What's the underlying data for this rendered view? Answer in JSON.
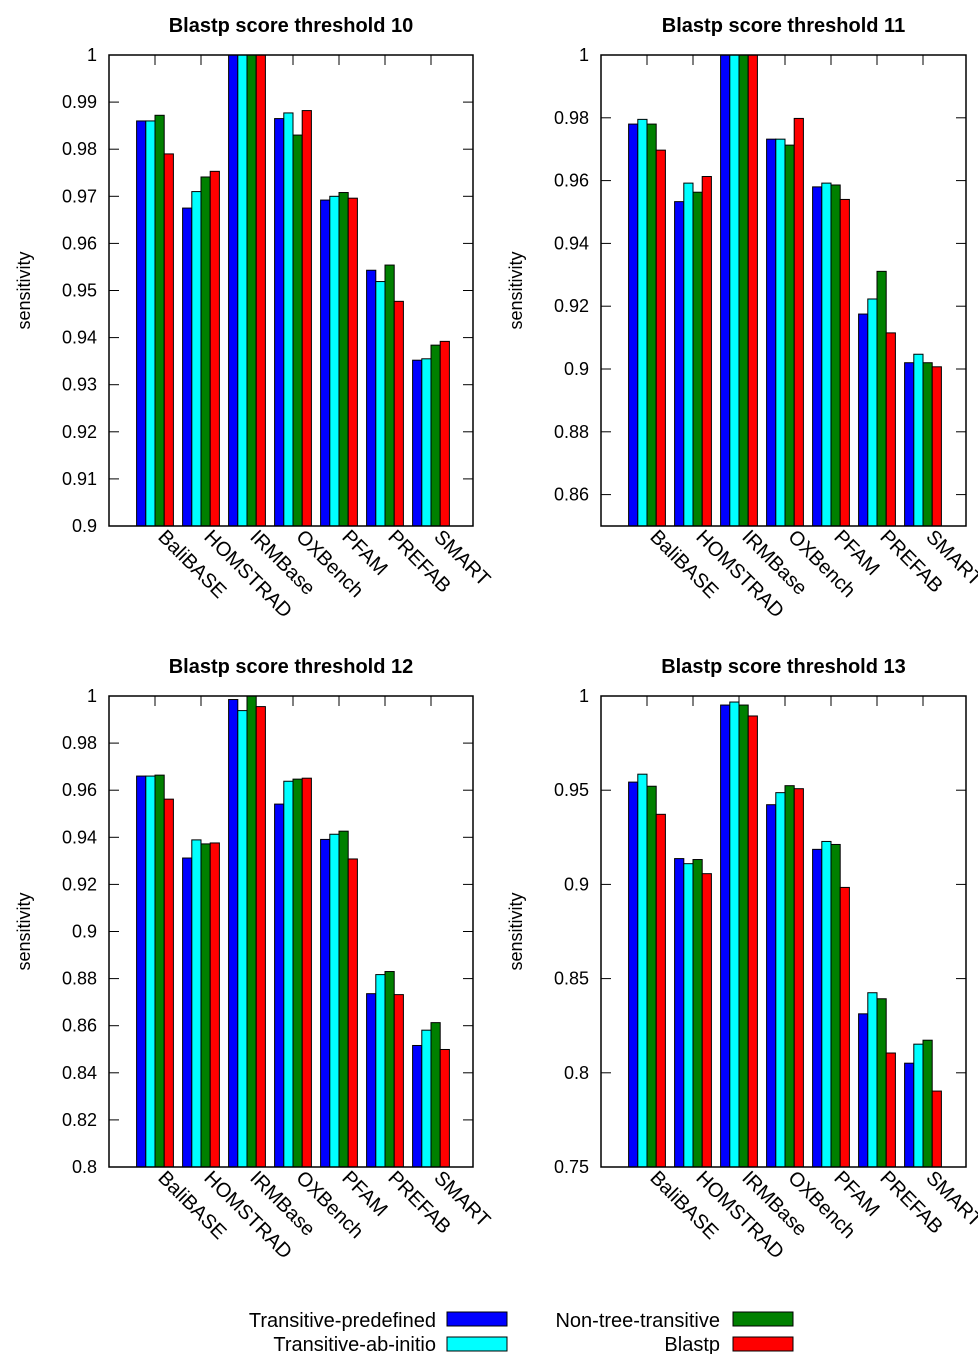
{
  "legend": [
    {
      "label": "Transitive-predefined",
      "color": "#0000ff"
    },
    {
      "label": "Transitive-ab-initio",
      "color": "#00ffff"
    },
    {
      "label": "Non-tree-transitive",
      "color": "#008000"
    },
    {
      "label": "Blastp",
      "color": "#ff0000"
    }
  ],
  "chart_data": [
    {
      "type": "bar",
      "title": "Blastp score threshold 10",
      "ylabel": "sensitivity",
      "xlabel": "",
      "ylim": [
        0.9,
        1.0
      ],
      "yticks": [
        0.9,
        0.91,
        0.92,
        0.93,
        0.94,
        0.95,
        0.96,
        0.97,
        0.98,
        0.99,
        1.0
      ],
      "ytick_labels": [
        "0.9",
        "0.91",
        "0.92",
        "0.93",
        "0.94",
        "0.95",
        "0.96",
        "0.97",
        "0.98",
        "0.99",
        "1"
      ],
      "categories": [
        "BaliBASE",
        "HOMSTRAD",
        "IRMBase",
        "OXBench",
        "PFAM",
        "PREFAB",
        "SMART"
      ],
      "series": [
        {
          "name": "Transitive-predefined",
          "values": [
            0.986,
            0.9675,
            1.0,
            0.9865,
            0.9692,
            0.9543,
            0.9352
          ]
        },
        {
          "name": "Transitive-ab-initio",
          "values": [
            0.986,
            0.971,
            1.0,
            0.9877,
            0.97,
            0.9519,
            0.9355
          ]
        },
        {
          "name": "Non-tree-transitive",
          "values": [
            0.9872,
            0.9741,
            1.0,
            0.983,
            0.9708,
            0.9554,
            0.9384
          ]
        },
        {
          "name": "Blastp",
          "values": [
            0.979,
            0.9753,
            1.0,
            0.9882,
            0.9696,
            0.9477,
            0.9392
          ]
        }
      ]
    },
    {
      "type": "bar",
      "title": "Blastp score threshold 11",
      "ylabel": "sensitivity",
      "xlabel": "",
      "ylim": [
        0.85,
        1.0
      ],
      "yticks": [
        0.86,
        0.88,
        0.9,
        0.92,
        0.94,
        0.96,
        0.98,
        1.0
      ],
      "ytick_labels": [
        "0.86",
        "0.88",
        "0.9",
        "0.92",
        "0.94",
        "0.96",
        "0.98",
        "1"
      ],
      "categories": [
        "BaliBASE",
        "HOMSTRAD",
        "IRMBase",
        "OXBench",
        "PFAM",
        "PREFAB",
        "SMART"
      ],
      "series": [
        {
          "name": "Transitive-predefined",
          "values": [
            0.978,
            0.9533,
            1.0,
            0.9732,
            0.958,
            0.9175,
            0.902
          ]
        },
        {
          "name": "Transitive-ab-initio",
          "values": [
            0.9795,
            0.9592,
            1.0,
            0.9732,
            0.9592,
            0.9223,
            0.9047
          ]
        },
        {
          "name": "Non-tree-transitive",
          "values": [
            0.978,
            0.9563,
            1.0,
            0.9713,
            0.9586,
            0.9311,
            0.902
          ]
        },
        {
          "name": "Blastp",
          "values": [
            0.9697,
            0.9613,
            1.0,
            0.9798,
            0.954,
            0.9115,
            0.9007
          ]
        }
      ]
    },
    {
      "type": "bar",
      "title": "Blastp score threshold 12",
      "ylabel": "sensitivity",
      "xlabel": "",
      "ylim": [
        0.8,
        1.0
      ],
      "yticks": [
        0.8,
        0.82,
        0.84,
        0.86,
        0.88,
        0.9,
        0.92,
        0.94,
        0.96,
        0.98,
        1.0
      ],
      "ytick_labels": [
        "0.8",
        "0.82",
        "0.84",
        "0.86",
        "0.88",
        "0.9",
        "0.92",
        "0.94",
        "0.96",
        "0.98",
        "1"
      ],
      "categories": [
        "BaliBASE",
        "HOMSTRAD",
        "IRMBase",
        "OXBench",
        "PFAM",
        "PREFAB",
        "SMART"
      ],
      "series": [
        {
          "name": "Transitive-predefined",
          "values": [
            0.966,
            0.9312,
            0.9985,
            0.9541,
            0.9391,
            0.8736,
            0.8516
          ]
        },
        {
          "name": "Transitive-ab-initio",
          "values": [
            0.966,
            0.9389,
            0.9938,
            0.9638,
            0.9413,
            0.8817,
            0.8581
          ]
        },
        {
          "name": "Non-tree-transitive",
          "values": [
            0.9664,
            0.9372,
            1.0,
            0.9647,
            0.9426,
            0.883,
            0.8613
          ]
        },
        {
          "name": "Blastp",
          "values": [
            0.9562,
            0.9376,
            0.9955,
            0.9651,
            0.9308,
            0.8732,
            0.8499
          ]
        }
      ]
    },
    {
      "type": "bar",
      "title": "Blastp score threshold 13",
      "ylabel": "sensitivity",
      "xlabel": "",
      "ylim": [
        0.75,
        1.0
      ],
      "yticks": [
        0.75,
        0.8,
        0.85,
        0.9,
        0.95,
        1.0
      ],
      "ytick_labels": [
        "0.75",
        "0.8",
        "0.85",
        "0.9",
        "0.95",
        "1"
      ],
      "categories": [
        "BaliBASE",
        "HOMSTRAD",
        "IRMBase",
        "OXBench",
        "PFAM",
        "PREFAB",
        "SMART"
      ],
      "series": [
        {
          "name": "Transitive-predefined",
          "values": [
            0.9543,
            0.9137,
            0.9952,
            0.9423,
            0.9186,
            0.8313,
            0.8051
          ]
        },
        {
          "name": "Transitive-ab-initio",
          "values": [
            0.9585,
            0.911,
            0.9968,
            0.9487,
            0.9228,
            0.8425,
            0.8152
          ]
        },
        {
          "name": "Non-tree-transitive",
          "values": [
            0.9521,
            0.9132,
            0.9952,
            0.9524,
            0.9212,
            0.8393,
            0.8173
          ]
        },
        {
          "name": "Blastp",
          "values": [
            0.9372,
            0.9057,
            0.9894,
            0.9508,
            0.8984,
            0.8105,
            0.7903
          ]
        }
      ]
    }
  ]
}
